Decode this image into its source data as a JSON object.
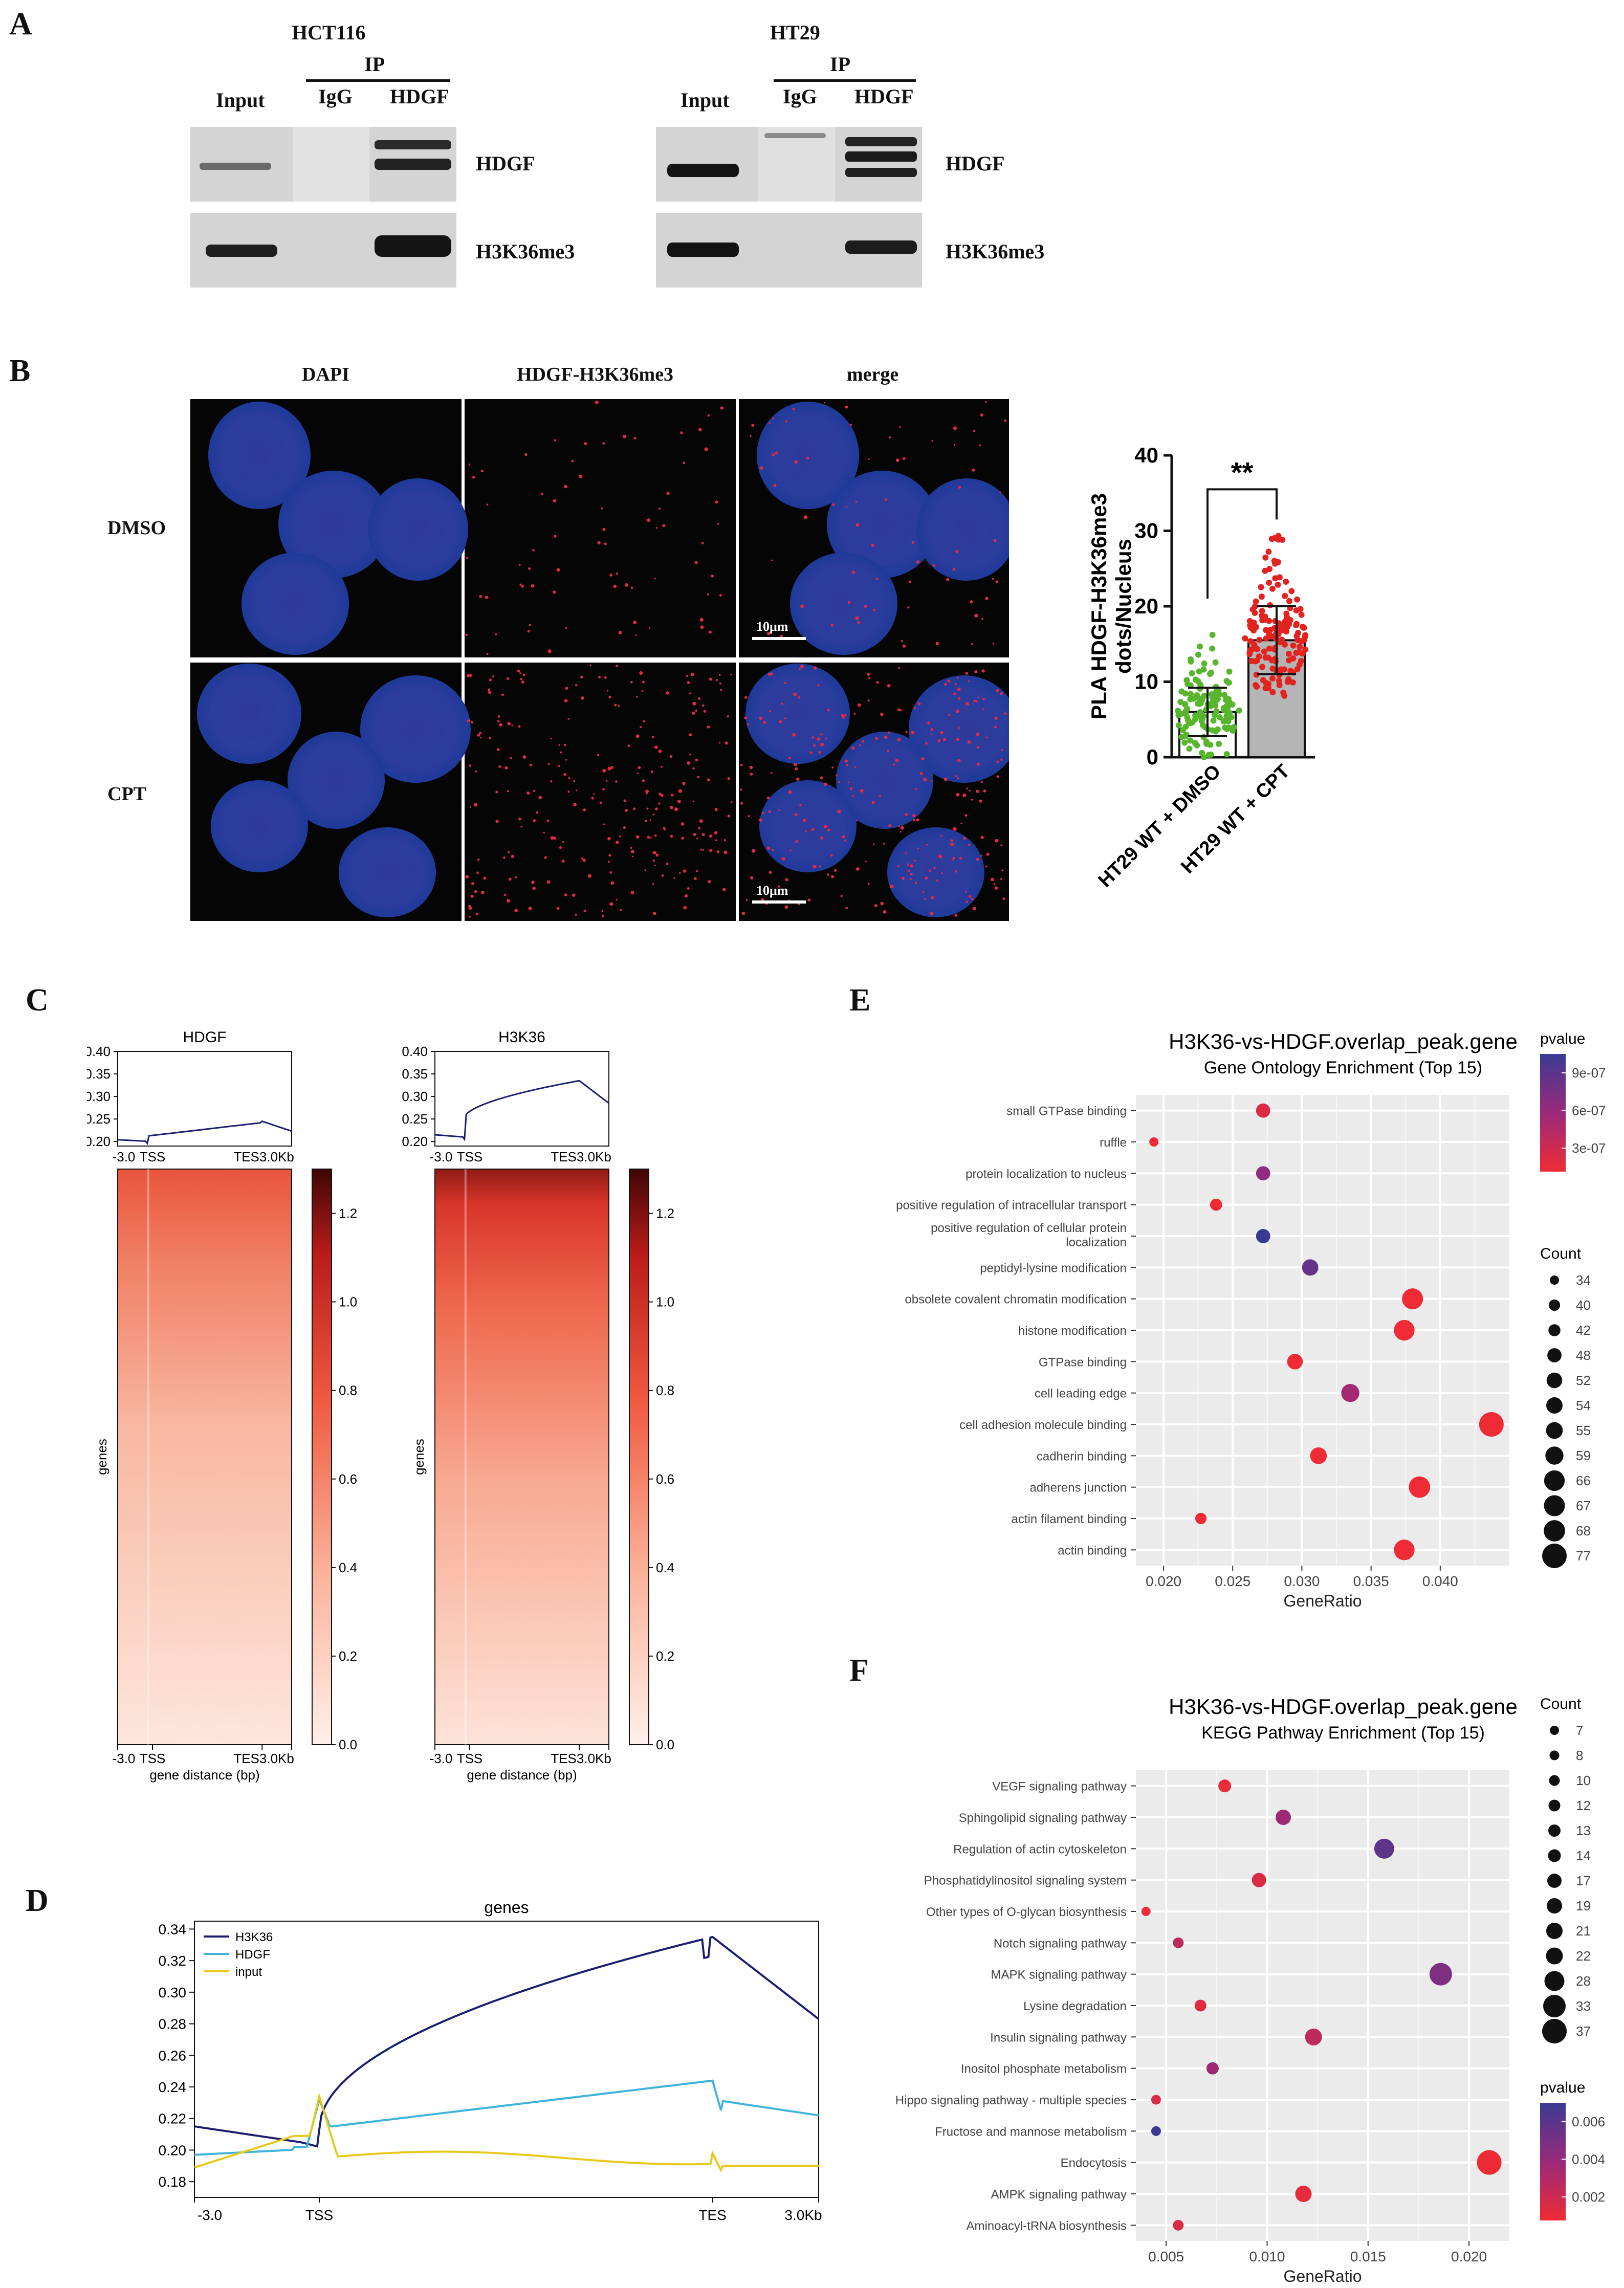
{
  "panels": {
    "A": "A",
    "B": "B",
    "C": "C",
    "D": "D",
    "E": "E",
    "F": "F"
  },
  "panelA": {
    "blots": [
      {
        "cell": "HCT116",
        "ip": "IP",
        "input": "Input",
        "igg": "IgG",
        "hdgf": "HDGF"
      },
      {
        "cell": "HT29",
        "ip": "IP",
        "input": "Input",
        "igg": "IgG",
        "hdgf": "HDGF"
      }
    ],
    "rows": [
      "HDGF",
      "H3K36me3"
    ]
  },
  "panelB": {
    "col_titles": [
      "DAPI",
      "HDGF-H3K36me3",
      "merge"
    ],
    "row_labels": [
      "DMSO",
      "CPT"
    ],
    "scalebar": "10μm",
    "bar_chart": {
      "ylabel": "PLA HDGF-H3K36me3\ndots/Nucleus",
      "yticks": [
        "0",
        "10",
        "20",
        "30",
        "40"
      ],
      "categories": [
        "HT29 WT + DMSO",
        "HT29 WT + CPT"
      ],
      "means": [
        6,
        15.5
      ],
      "sd": [
        3.2,
        4.5
      ],
      "significance": "**",
      "colors": [
        "#58b52e",
        "#e3231f"
      ]
    }
  },
  "panelC": {
    "plots": [
      {
        "title": "HDGF"
      },
      {
        "title": "H3K36"
      }
    ],
    "profile_yticks": [
      "0.40",
      "0.35",
      "0.30",
      "0.25",
      "0.20"
    ],
    "x_ticks": [
      "-3.0",
      "TSS",
      "TES3.0Kb"
    ],
    "ylabel": "genes",
    "xlabel": "gene distance (bp)",
    "colorbar_ticks": [
      "1.2",
      "1.0",
      "0.8",
      "0.6",
      "0.4",
      "0.2",
      "0.0"
    ]
  },
  "panelD": {
    "title": "genes",
    "yticks": [
      "0.34",
      "0.32",
      "0.30",
      "0.28",
      "0.26",
      "0.24",
      "0.22",
      "0.20",
      "0.18"
    ],
    "xticks": [
      "-3.0",
      "TSS",
      "TES",
      "3.0Kb"
    ],
    "legend": [
      {
        "name": "H3K36",
        "color": "#1b1e6e"
      },
      {
        "name": "HDGF",
        "color": "#3fb3dc"
      },
      {
        "name": "input",
        "color": "#e8c81a"
      }
    ]
  },
  "chart_data": [
    {
      "type": "bar",
      "title": "",
      "categories": [
        "HT29 WT + DMSO",
        "HT29 WT + CPT"
      ],
      "values": [
        6,
        15.5
      ],
      "error": [
        3.2,
        4.5
      ],
      "ylabel": "PLA HDGF-H3K36me3 dots/Nucleus",
      "ylim": [
        0,
        40
      ]
    },
    {
      "type": "line",
      "title": "genes",
      "x": [
        "-3.0",
        "TSS",
        "TES",
        "3.0Kb"
      ],
      "series": [
        {
          "name": "H3K36",
          "values": [
            0.215,
            0.205,
            0.335,
            0.283
          ]
        },
        {
          "name": "HDGF",
          "values": [
            0.198,
            0.205,
            0.243,
            0.222
          ]
        },
        {
          "name": "input",
          "values": [
            0.19,
            0.214,
            0.198,
            0.19
          ]
        }
      ],
      "ylim": [
        0.17,
        0.345
      ]
    },
    {
      "type": "scatter",
      "title": "H3K36-vs-HDGF.overlap_peak.gene",
      "subtitle": "Gene Ontology Enrichment (Top 15)",
      "xlabel": "GeneRatio",
      "xlim": [
        0.018,
        0.045
      ],
      "xticks": [
        "0.020",
        "0.025",
        "0.030",
        "0.035",
        "0.040"
      ],
      "categories": [
        "small GTPase binding",
        "ruffle",
        "protein localization to nucleus",
        "positive regulation of intracellular transport",
        "positive regulation of cellular protein localization",
        "peptidyl-lysine modification",
        "obsolete covalent chromatin modification",
        "histone modification",
        "GTPase binding",
        "cell leading edge",
        "cell adhesion molecule binding",
        "cadherin binding",
        "adherens junction",
        "actin filament binding",
        "actin binding"
      ],
      "gene_ratio": [
        0.0272,
        0.0193,
        0.0272,
        0.0238,
        0.0272,
        0.0306,
        0.038,
        0.0374,
        0.0295,
        0.0335,
        0.0437,
        0.0312,
        0.0385,
        0.0227,
        0.0374
      ],
      "count": [
        48,
        34,
        48,
        42,
        48,
        54,
        67,
        66,
        52,
        59,
        77,
        55,
        68,
        40,
        66
      ],
      "pvalue": [
        2e-07,
        1e-07,
        6e-07,
        1e-07,
        1e-06,
        8e-07,
        1e-07,
        1e-07,
        1e-07,
        5e-07,
        1e-07,
        1e-07,
        1e-07,
        1e-07,
        1e-07
      ],
      "count_legend": [
        "34",
        "40",
        "42",
        "48",
        "52",
        "54",
        "55",
        "59",
        "66",
        "67",
        "68",
        "77"
      ],
      "pvalue_legend": [
        "9e-07",
        "6e-07",
        "3e-07"
      ],
      "legend_titles": {
        "color": "pvalue",
        "size": "Count"
      }
    },
    {
      "type": "scatter",
      "title": "H3K36-vs-HDGF.overlap_peak.gene",
      "subtitle": "KEGG Pathway Enrichment (Top 15)",
      "xlabel": "GeneRatio",
      "xlim": [
        0.0035,
        0.022
      ],
      "xticks": [
        "0.005",
        "0.010",
        "0.015",
        "0.020"
      ],
      "categories": [
        "VEGF signaling pathway",
        "Sphingolipid signaling pathway",
        "Regulation of actin cytoskeleton",
        "Phosphatidylinositol signaling system",
        "Other types of O-glycan biosynthesis",
        "Notch signaling pathway",
        "MAPK signaling pathway",
        "Lysine degradation",
        "Insulin signaling pathway",
        "Inositol phosphate metabolism",
        "Hippo signaling pathway - multiple species",
        "Fructose and mannose metabolism",
        "Endocytosis",
        "AMPK signaling pathway",
        "Aminoacyl-tRNA biosynthesis"
      ],
      "gene_ratio": [
        0.0079,
        0.0108,
        0.0158,
        0.0096,
        0.004,
        0.0056,
        0.0186,
        0.0067,
        0.0123,
        0.0073,
        0.0045,
        0.0045,
        0.021,
        0.0118,
        0.0056
      ],
      "count": [
        14,
        19,
        28,
        17,
        7,
        10,
        33,
        12,
        22,
        13,
        8,
        8,
        37,
        21,
        10
      ],
      "pvalue": [
        0.0005,
        0.003,
        0.005,
        0.001,
        0.0003,
        0.002,
        0.004,
        0.0008,
        0.002,
        0.003,
        0.001,
        0.006,
        0.0004,
        0.0006,
        0.001
      ],
      "count_legend": [
        "7",
        "8",
        "10",
        "12",
        "13",
        "14",
        "17",
        "19",
        "21",
        "22",
        "28",
        "33",
        "37"
      ],
      "pvalue_legend": [
        "0.006",
        "0.004",
        "0.002"
      ],
      "legend_titles": {
        "color": "pvalue",
        "size": "Count"
      }
    }
  ],
  "panelE": {
    "title": "H3K36-vs-HDGF.overlap_peak.gene",
    "subtitle": "Gene Ontology Enrichment (Top 15)",
    "xlabel": "GeneRatio",
    "pvalue_title": "pvalue",
    "count_title": "Count"
  },
  "panelF": {
    "title": "H3K36-vs-HDGF.overlap_peak.gene",
    "subtitle": "KEGG Pathway Enrichment (Top 15)",
    "xlabel": "GeneRatio",
    "pvalue_title": "pvalue",
    "count_title": "Count"
  }
}
